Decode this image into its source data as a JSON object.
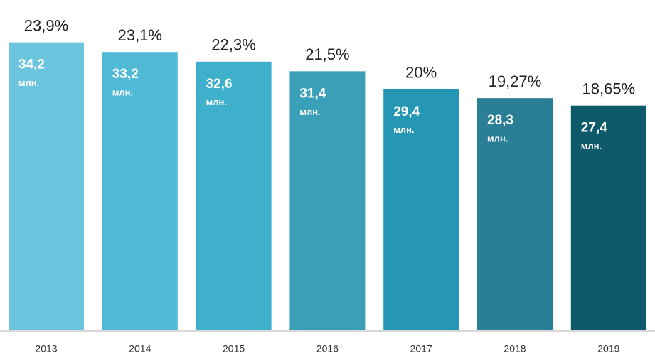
{
  "chart_data": {
    "type": "bar",
    "categories": [
      "2013",
      "2014",
      "2015",
      "2016",
      "2017",
      "2018",
      "2019"
    ],
    "values": [
      23.9,
      23.1,
      22.3,
      21.5,
      20,
      19.27,
      18.65
    ],
    "value_labels": [
      "23,9%",
      "23,1%",
      "22,3%",
      "21,5%",
      "20%",
      "19,27%",
      "18,65%"
    ],
    "colors": [
      "#6cc5de",
      "#4fb9d6",
      "#3fb0cc",
      "#3aa0b8",
      "#2597b5",
      "#2a7f96",
      "#0e5a6a"
    ],
    "counts": {
      "values": [
        34.2,
        33.2,
        32.6,
        31.4,
        29.4,
        28.3,
        27.4
      ],
      "value_labels": [
        "34,2",
        "33,2",
        "32,6",
        "31,4",
        "29,4",
        "28,3",
        "27,4"
      ],
      "unit": "млн."
    },
    "ylim": [
      0,
      25
    ]
  }
}
